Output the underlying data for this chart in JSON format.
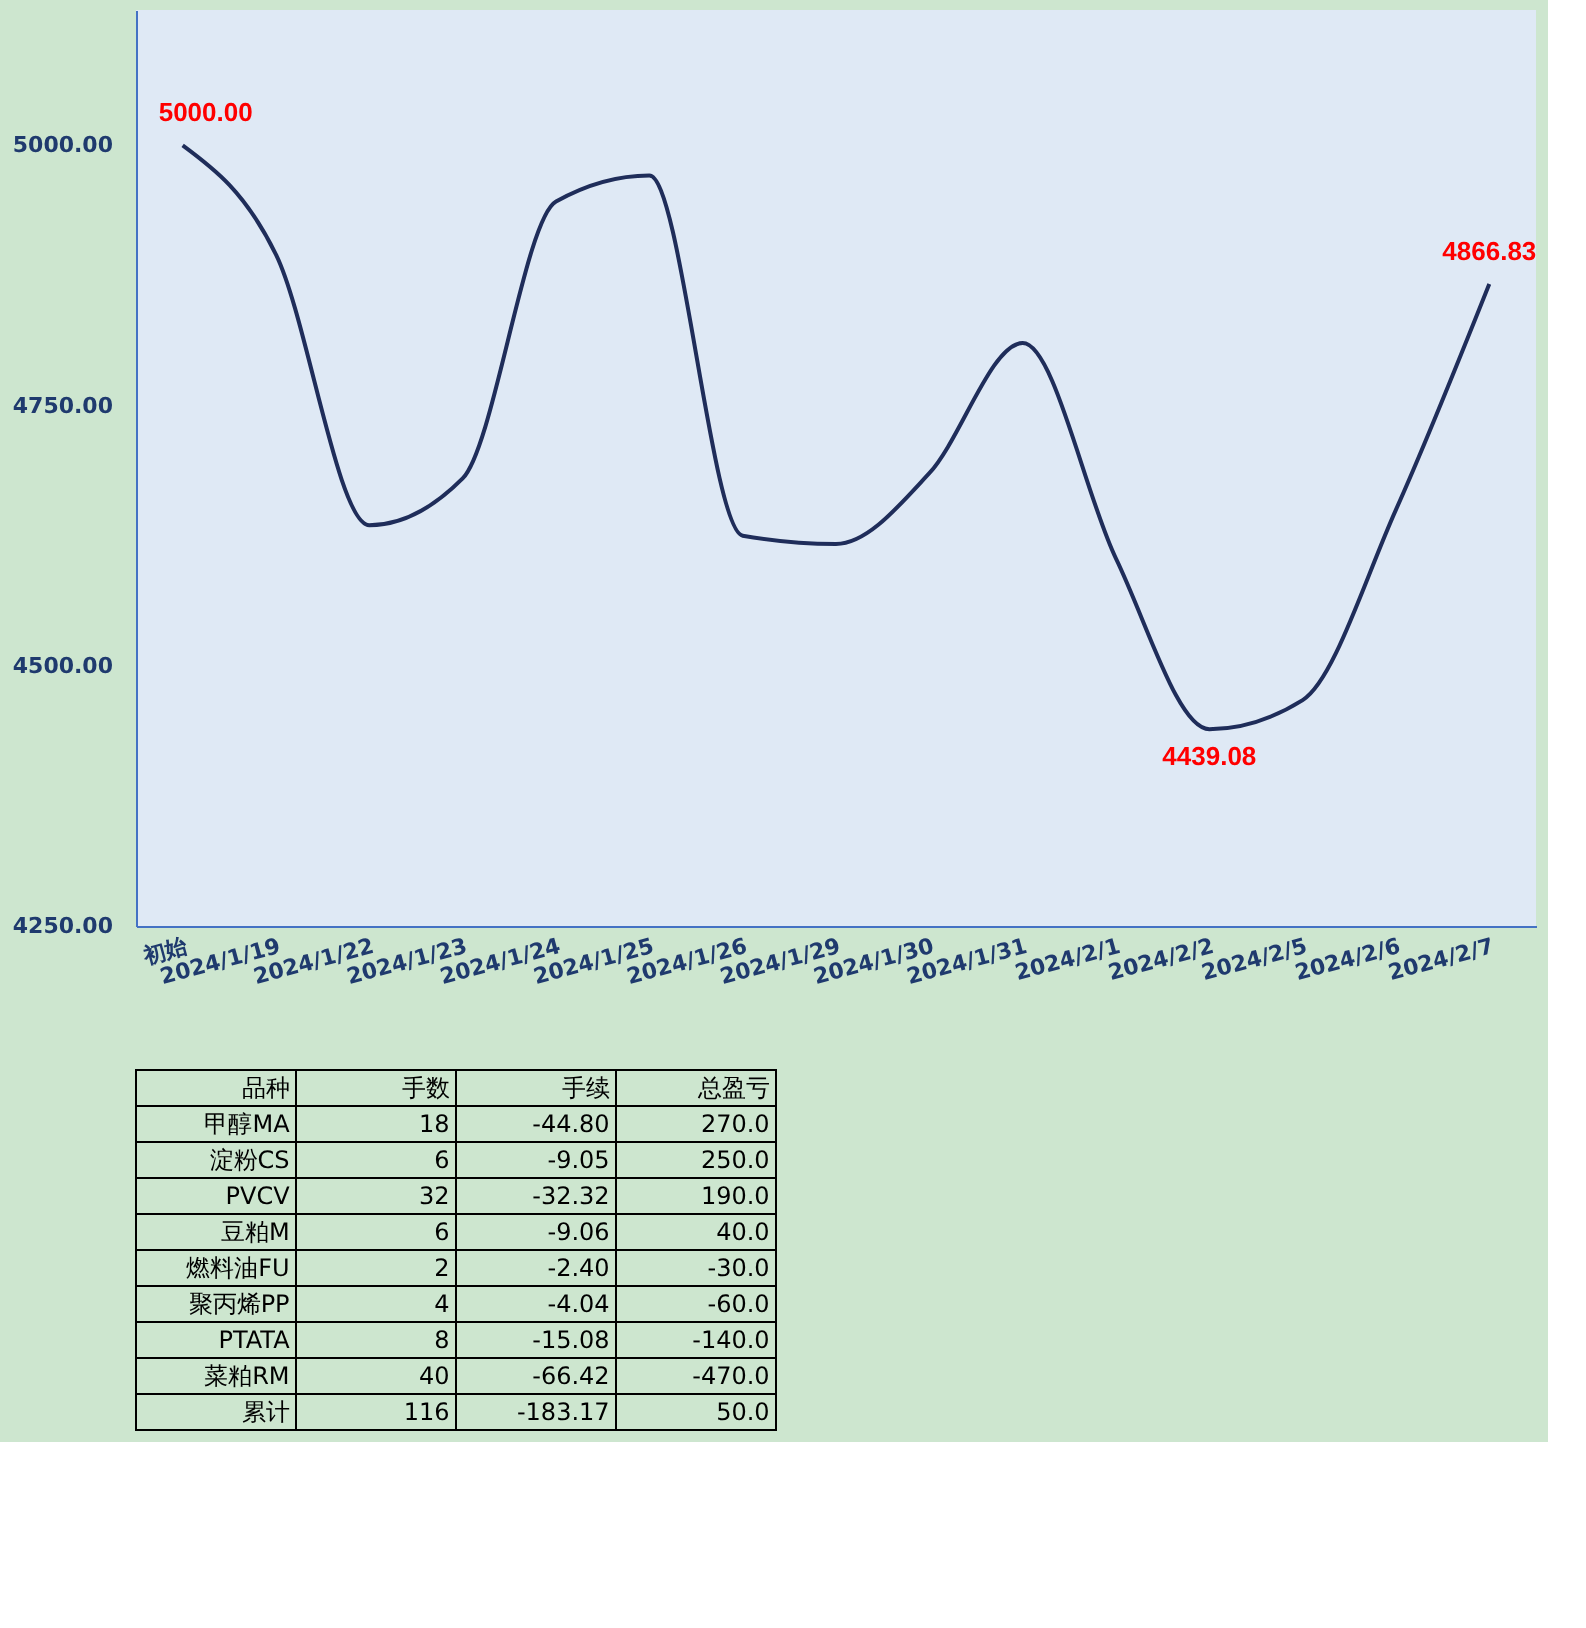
{
  "chart_data": [
    {
      "type": "line",
      "categories": [
        "初始",
        "2024/1/19",
        "2024/1/22",
        "2024/1/23",
        "2024/1/24",
        "2024/1/25",
        "2024/1/26",
        "2024/1/29",
        "2024/1/30",
        "2024/1/31",
        "2024/2/1",
        "2024/2/2",
        "2024/2/5",
        "2024/2/6",
        "2024/2/7"
      ],
      "series": [
        {
          "color": "#1f2d5a",
          "values": [
            5000.0,
            4895,
            4635,
            4680,
            4946,
            4971,
            4625,
            4617,
            4685,
            4810,
            4603,
            4439.08,
            4467,
            4650,
            4866.83
          ],
          "value_labels": [
            "5000.00",
            null,
            null,
            null,
            null,
            null,
            null,
            null,
            null,
            null,
            null,
            "4439.08",
            null,
            null,
            "4866.83"
          ]
        }
      ],
      "ylim": [
        4250,
        5130
      ],
      "yticks": [
        {
          "value": 4250,
          "label": "4250.00"
        },
        {
          "value": 4500,
          "label": "4500.00"
        },
        {
          "value": 4750,
          "label": "4750.00"
        },
        {
          "value": 5000,
          "label": "5000.00"
        }
      ],
      "grid": false,
      "marker": "none",
      "line_style": "solid"
    },
    {
      "type": "other",
      "annotations": [
        "品种",
        "手数",
        "手续",
        "总盈亏",
        "甲醇MA",
        "18",
        "-44.80",
        "270.0",
        "淀粉CS",
        "6",
        "-9.05",
        "250.0",
        "PVCV",
        "32",
        "-32.32",
        "190.0",
        "豆粕M",
        "6",
        "-9.06",
        "40.0",
        "燃料油FU",
        "2",
        "-2.40",
        "-30.0",
        "聚丙烯PP",
        "4",
        "-4.04",
        "-60.0",
        "PTATA",
        "8",
        "-15.08",
        "-140.0",
        "菜粕RM",
        "40",
        "-66.42",
        "-470.0",
        "累计",
        "116",
        "-183.17",
        "50.0"
      ]
    }
  ]
}
